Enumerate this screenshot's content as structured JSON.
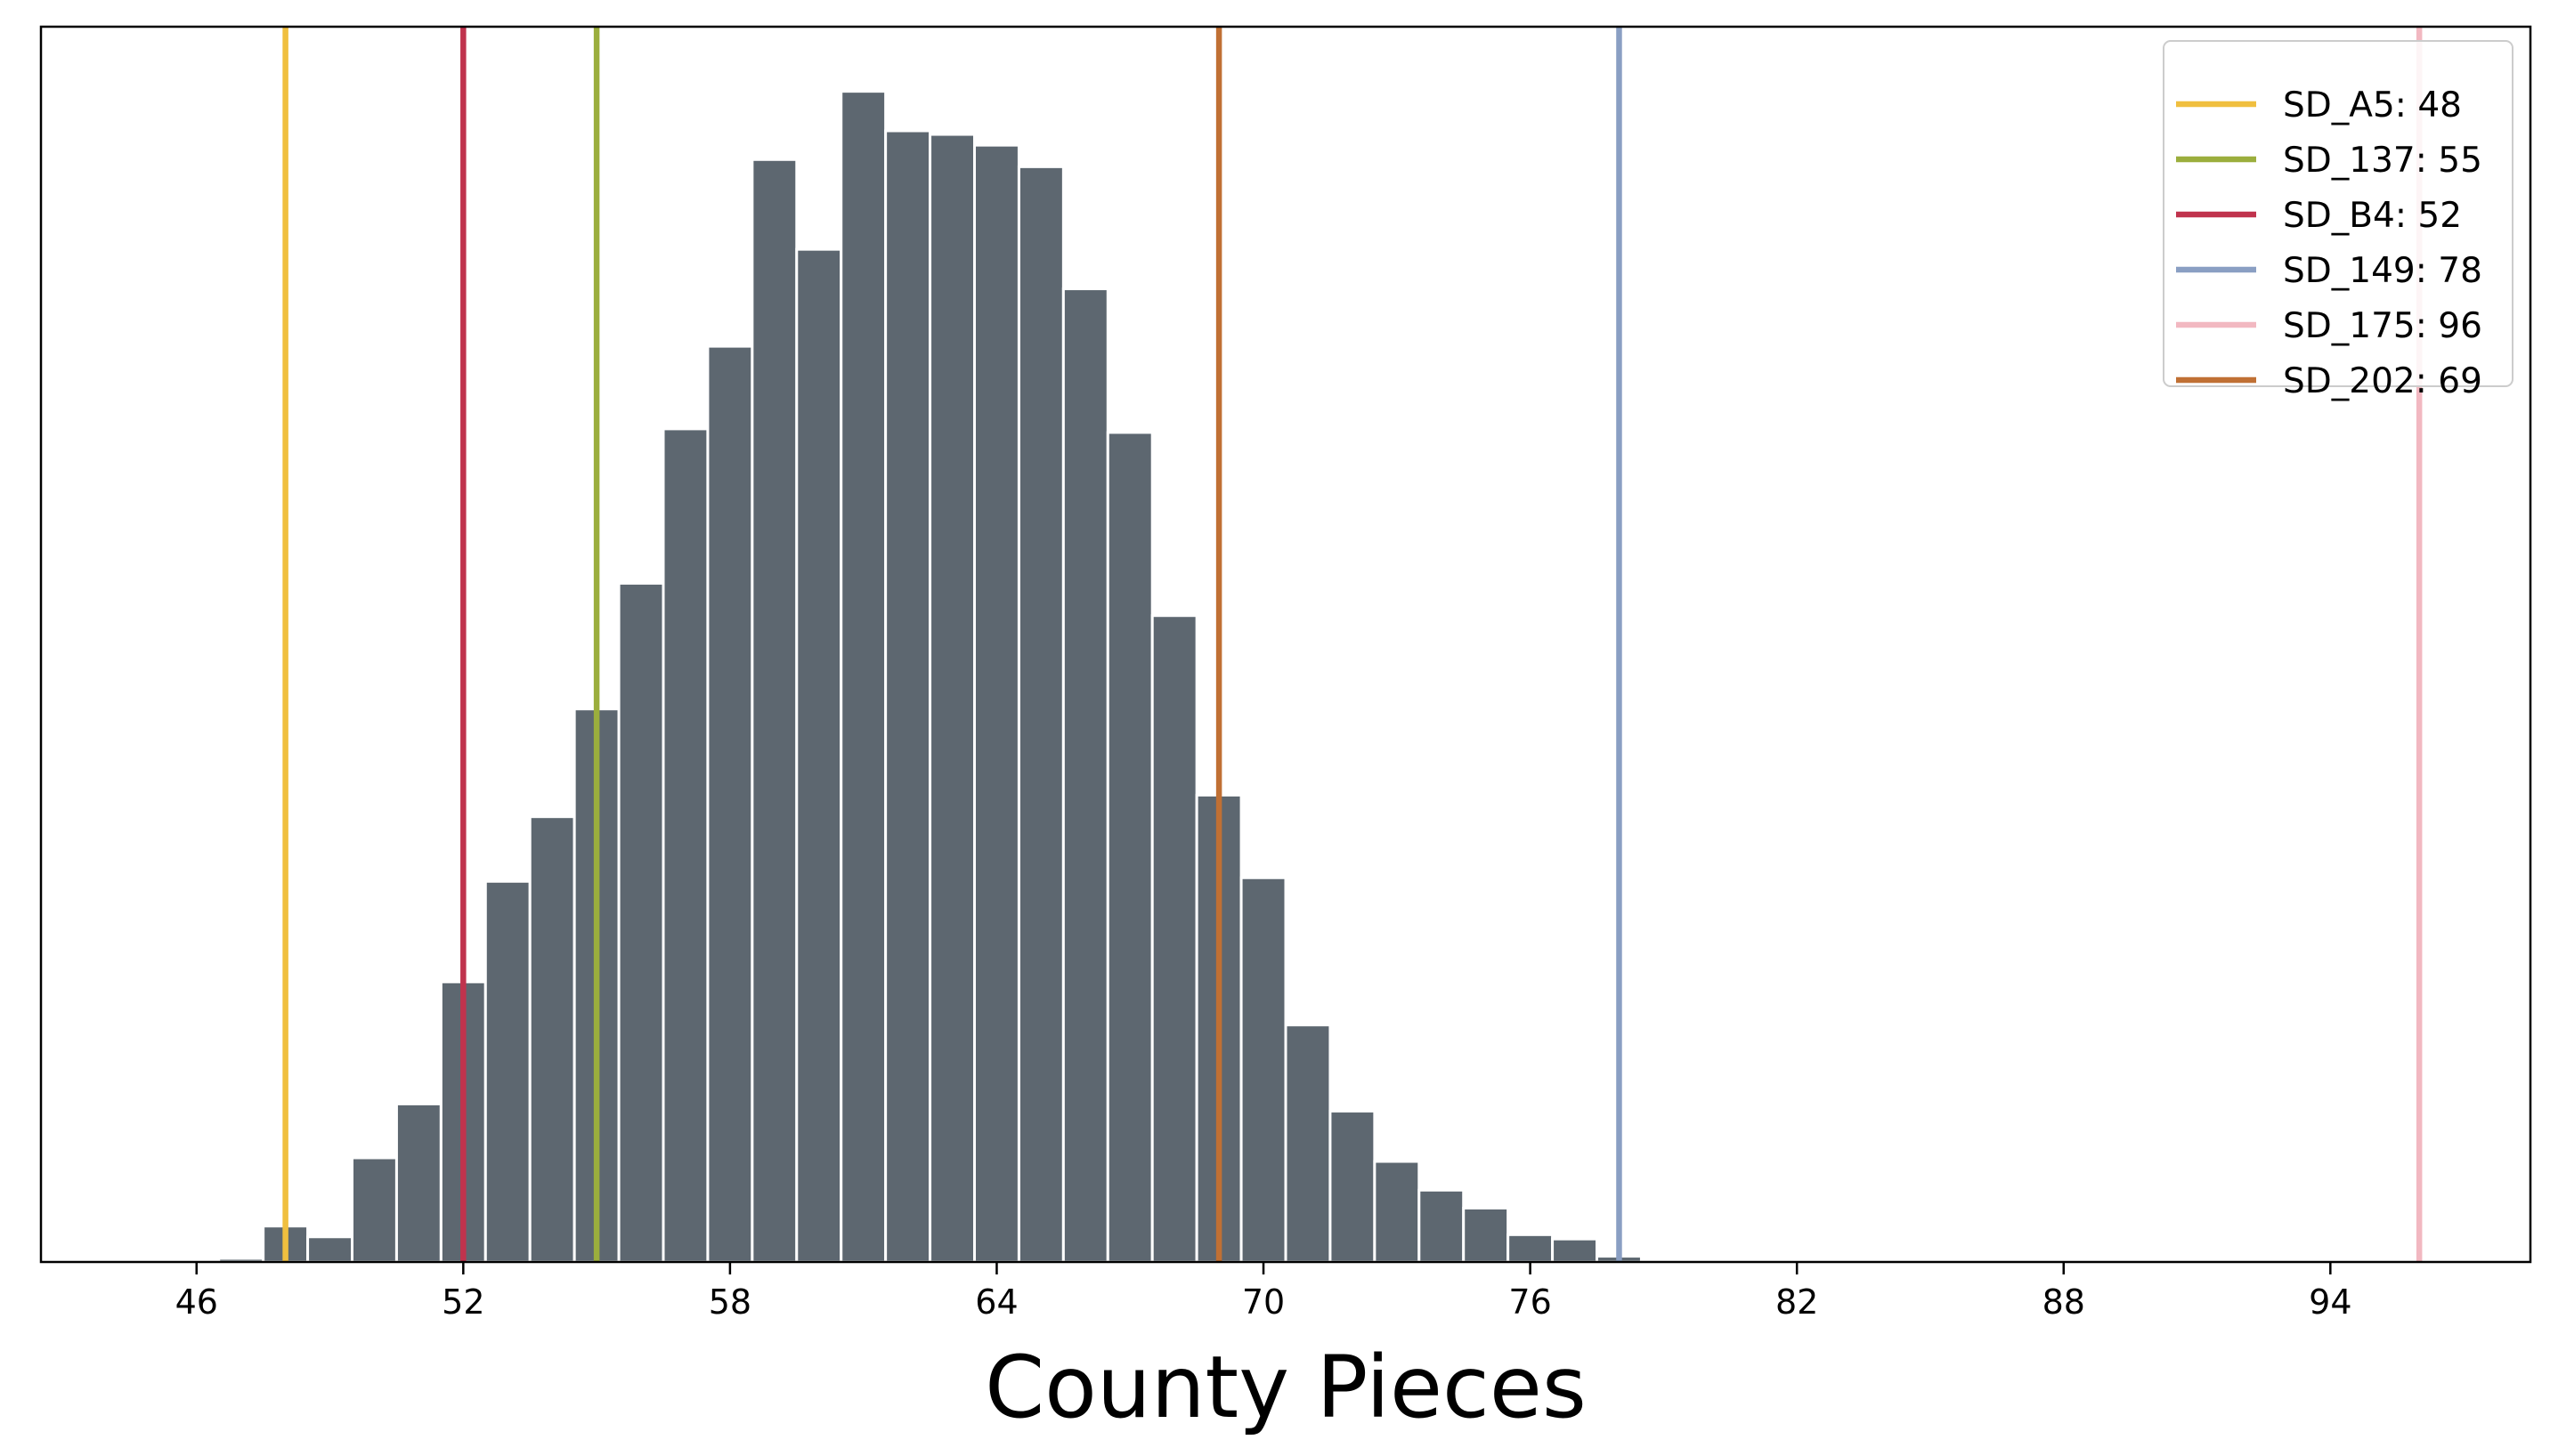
{
  "chart_data": {
    "type": "bar",
    "title": "",
    "xlabel": "County Pieces",
    "ylabel": "",
    "bin_width": 1,
    "bins": [
      {
        "x": 46,
        "value": 0.0
      },
      {
        "x": 47,
        "value": 0.05
      },
      {
        "x": 48,
        "value": 0.5
      },
      {
        "x": 49,
        "value": 0.35
      },
      {
        "x": 50,
        "value": 1.45
      },
      {
        "x": 51,
        "value": 2.2
      },
      {
        "x": 52,
        "value": 3.9
      },
      {
        "x": 53,
        "value": 5.3
      },
      {
        "x": 54,
        "value": 6.2
      },
      {
        "x": 55,
        "value": 7.7
      },
      {
        "x": 56,
        "value": 9.45
      },
      {
        "x": 57,
        "value": 11.6
      },
      {
        "x": 58,
        "value": 12.75
      },
      {
        "x": 59,
        "value": 15.35
      },
      {
        "x": 60,
        "value": 14.1
      },
      {
        "x": 61,
        "value": 16.3
      },
      {
        "x": 62,
        "value": 15.75
      },
      {
        "x": 63,
        "value": 15.7
      },
      {
        "x": 64,
        "value": 15.55
      },
      {
        "x": 65,
        "value": 15.25
      },
      {
        "x": 66,
        "value": 13.55
      },
      {
        "x": 67,
        "value": 11.55
      },
      {
        "x": 68,
        "value": 9.0
      },
      {
        "x": 69,
        "value": 6.5
      },
      {
        "x": 70,
        "value": 5.35
      },
      {
        "x": 71,
        "value": 3.3
      },
      {
        "x": 72,
        "value": 2.1
      },
      {
        "x": 73,
        "value": 1.4
      },
      {
        "x": 74,
        "value": 1.0
      },
      {
        "x": 75,
        "value": 0.75
      },
      {
        "x": 76,
        "value": 0.38
      },
      {
        "x": 77,
        "value": 0.32
      },
      {
        "x": 78,
        "value": 0.08
      }
    ],
    "xlim": [
      42.5,
      98.5
    ],
    "ylim": [
      0,
      17.2
    ],
    "x_ticks": [
      "46",
      "52",
      "58",
      "64",
      "70",
      "76",
      "82",
      "88",
      "94"
    ],
    "y_ticks_visible": false,
    "bar_color": "#5d6770",
    "grid": false,
    "legend_position": "top-right",
    "reference_lines": [
      {
        "label": "SD_A5: 48",
        "x": 48,
        "color": "#f0bf3f"
      },
      {
        "label": "SD_137: 55",
        "x": 55,
        "color": "#9bae3d"
      },
      {
        "label": "SD_B4: 52",
        "x": 52,
        "color": "#c0334d"
      },
      {
        "label": "SD_149: 78",
        "x": 78,
        "color": "#8a9fc3"
      },
      {
        "label": "SD_175: 96",
        "x": 96,
        "color": "#f2b8c1"
      },
      {
        "label": "SD_202: 69",
        "x": 69,
        "color": "#c07034"
      }
    ]
  }
}
